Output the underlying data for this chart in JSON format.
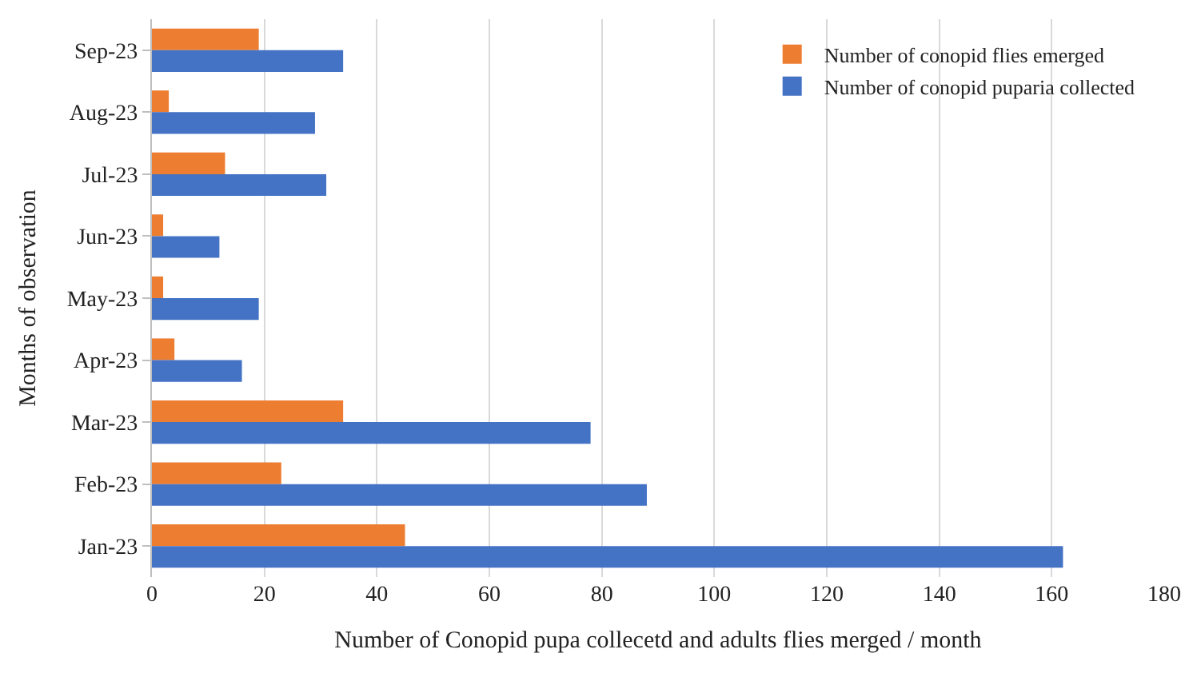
{
  "chart_data": {
    "type": "bar",
    "orientation": "horizontal",
    "xlabel": "Number of Conopid pupa collecetd and adults flies merged / month",
    "ylabel": "Months of observation",
    "categories": [
      "Sep-23",
      "Aug-23",
      "Jul-23",
      "Jun-23",
      "May-23",
      "Apr-23",
      "Mar-23",
      "Feb-23",
      "Jan-23"
    ],
    "series": [
      {
        "name": "Number of conopid flies emerged",
        "color": "#ed7d31",
        "values": [
          19,
          3,
          13,
          2,
          2,
          4,
          34,
          23,
          45
        ]
      },
      {
        "name": "Number of conopid puparia collected",
        "color": "#4472c4",
        "values": [
          34,
          29,
          31,
          12,
          19,
          16,
          78,
          88,
          162
        ]
      }
    ],
    "xlim": [
      0,
      180
    ],
    "xticks": [
      0,
      20,
      40,
      60,
      80,
      100,
      120,
      140,
      160,
      180
    ],
    "grid": "x",
    "legend": "top right"
  }
}
